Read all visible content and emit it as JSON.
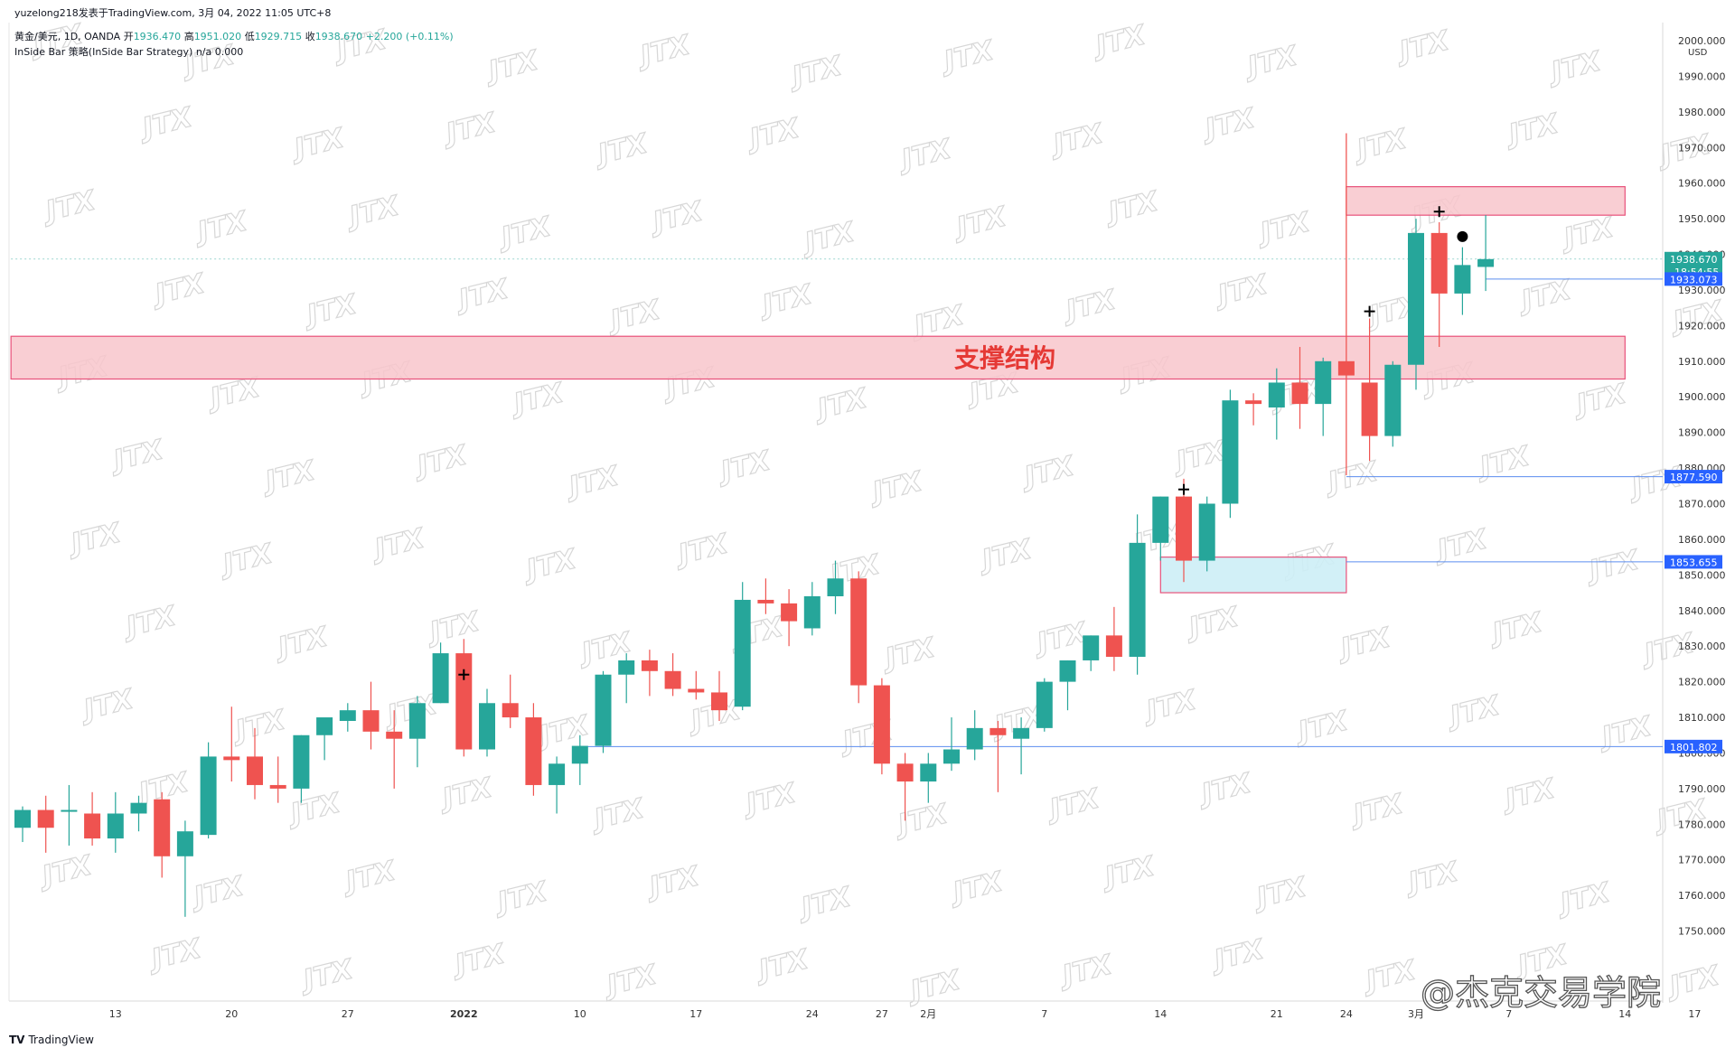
{
  "header": {
    "line1": "yuzelong218发表于TradingView.com, 3月 04, 2022 11:05 UTC+8",
    "symbol": "黄金/美元, 1D, OANDA",
    "open_label": "开",
    "open": "1936.470",
    "high_label": "高",
    "high": "1951.020",
    "low_label": "低",
    "low": "1929.715",
    "close_label": "收",
    "close": "1938.670",
    "change": "+2.200 (+0.11%)",
    "indicator": "InSide Bar 策略(InSide Bar Strategy)  n/a  0.000"
  },
  "footer": {
    "logo": "TradingView",
    "credit": "@杰克交易学院"
  },
  "price_axis": {
    "currency": "USD"
  },
  "price_tags": [
    {
      "price": 1938.67,
      "label": "1938.670",
      "sub": "18:54:55",
      "color": "#26a69a"
    },
    {
      "price": 1933.073,
      "label": "1933.073",
      "color": "#2962ff"
    },
    {
      "price": 1877.59,
      "label": "1877.590",
      "color": "#2962ff"
    },
    {
      "price": 1853.655,
      "label": "1853.655",
      "color": "#2962ff"
    },
    {
      "price": 1801.802,
      "label": "1801.802",
      "color": "#2962ff"
    }
  ],
  "annotations": {
    "support_label": "支撑结构"
  },
  "colors": {
    "up": "#26a69a",
    "down": "#ef5350",
    "zone": "#f8c5cb",
    "zone_border": "#e8517a",
    "blue_zone": "#cdeef6",
    "line": "#5b8def",
    "watermark": "#d7d7d7"
  },
  "watermark_text": "JTX",
  "chart_data": {
    "type": "candlestick",
    "x_labels": [
      {
        "index": 4,
        "label": "13"
      },
      {
        "index": 9,
        "label": "20"
      },
      {
        "index": 14,
        "label": "27"
      },
      {
        "index": 19,
        "label": "2022"
      },
      {
        "index": 24,
        "label": "10"
      },
      {
        "index": 29,
        "label": "17"
      },
      {
        "index": 34,
        "label": "24"
      },
      {
        "index": 37,
        "label": "27"
      },
      {
        "index": 39,
        "label": "2月"
      },
      {
        "index": 44,
        "label": "7"
      },
      {
        "index": 49,
        "label": "14"
      },
      {
        "index": 54,
        "label": "21"
      },
      {
        "index": 57,
        "label": "24"
      },
      {
        "index": 60,
        "label": "3月"
      },
      {
        "index": 64,
        "label": "7"
      },
      {
        "index": 69,
        "label": "14"
      },
      {
        "index": 72,
        "label": "17"
      }
    ],
    "y_range": [
      1740,
      2000
    ],
    "y_ticks": [
      1750,
      1760,
      1770,
      1780,
      1790,
      1800,
      1810,
      1820,
      1830,
      1840,
      1850,
      1860,
      1870,
      1880,
      1890,
      1900,
      1910,
      1920,
      1930,
      1940,
      1950,
      1960,
      1970,
      1980,
      1990,
      2000
    ],
    "candles": [
      {
        "o": 1779,
        "h": 1785,
        "l": 1775,
        "c": 1784
      },
      {
        "o": 1784,
        "h": 1788,
        "l": 1772,
        "c": 1779
      },
      {
        "o": 1784,
        "h": 1791,
        "l": 1774,
        "c": 1784
      },
      {
        "o": 1783,
        "h": 1789,
        "l": 1774,
        "c": 1776
      },
      {
        "o": 1776,
        "h": 1789,
        "l": 1772,
        "c": 1783
      },
      {
        "o": 1783,
        "h": 1788,
        "l": 1778,
        "c": 1786
      },
      {
        "o": 1787,
        "h": 1789,
        "l": 1765,
        "c": 1771
      },
      {
        "o": 1771,
        "h": 1781,
        "l": 1754,
        "c": 1778
      },
      {
        "o": 1777,
        "h": 1803,
        "l": 1776,
        "c": 1799
      },
      {
        "o": 1799,
        "h": 1813,
        "l": 1792,
        "c": 1798
      },
      {
        "o": 1799,
        "h": 1807,
        "l": 1787,
        "c": 1791
      },
      {
        "o": 1791,
        "h": 1799,
        "l": 1786,
        "c": 1790
      },
      {
        "o": 1790,
        "h": 1805,
        "l": 1786,
        "c": 1805
      },
      {
        "o": 1805,
        "h": 1809,
        "l": 1798,
        "c": 1810
      },
      {
        "o": 1809,
        "h": 1814,
        "l": 1806,
        "c": 1812
      },
      {
        "o": 1812,
        "h": 1820,
        "l": 1801,
        "c": 1806
      },
      {
        "o": 1806,
        "h": 1812,
        "l": 1790,
        "c": 1804
      },
      {
        "o": 1804,
        "h": 1816,
        "l": 1796,
        "c": 1814
      },
      {
        "o": 1814,
        "h": 1831,
        "l": 1814,
        "c": 1828
      },
      {
        "o": 1828,
        "h": 1832,
        "l": 1799,
        "c": 1801
      },
      {
        "o": 1801,
        "h": 1818,
        "l": 1799,
        "c": 1814
      },
      {
        "o": 1814,
        "h": 1822,
        "l": 1807,
        "c": 1810
      },
      {
        "o": 1810,
        "h": 1814,
        "l": 1788,
        "c": 1791
      },
      {
        "o": 1791,
        "h": 1799,
        "l": 1783,
        "c": 1797
      },
      {
        "o": 1797,
        "h": 1805,
        "l": 1791,
        "c": 1802
      },
      {
        "o": 1802,
        "h": 1823,
        "l": 1800,
        "c": 1822
      },
      {
        "o": 1822,
        "h": 1828,
        "l": 1814,
        "c": 1826
      },
      {
        "o": 1826,
        "h": 1829,
        "l": 1816,
        "c": 1823
      },
      {
        "o": 1823,
        "h": 1828,
        "l": 1816,
        "c": 1818
      },
      {
        "o": 1818,
        "h": 1823,
        "l": 1815,
        "c": 1817
      },
      {
        "o": 1817,
        "h": 1823,
        "l": 1809,
        "c": 1812
      },
      {
        "o": 1813,
        "h": 1848,
        "l": 1812,
        "c": 1843
      },
      {
        "o": 1843,
        "h": 1849,
        "l": 1839,
        "c": 1842
      },
      {
        "o": 1842,
        "h": 1846,
        "l": 1830,
        "c": 1837
      },
      {
        "o": 1835,
        "h": 1848,
        "l": 1833,
        "c": 1844
      },
      {
        "o": 1844,
        "h": 1854,
        "l": 1839,
        "c": 1849
      },
      {
        "o": 1849,
        "h": 1851,
        "l": 1814,
        "c": 1819
      },
      {
        "o": 1819,
        "h": 1821,
        "l": 1794,
        "c": 1797
      },
      {
        "o": 1797,
        "h": 1800,
        "l": 1781,
        "c": 1792
      },
      {
        "o": 1792,
        "h": 1800,
        "l": 1786,
        "c": 1797
      },
      {
        "o": 1797,
        "h": 1810,
        "l": 1795,
        "c": 1801
      },
      {
        "o": 1801,
        "h": 1812,
        "l": 1798,
        "c": 1807
      },
      {
        "o": 1807,
        "h": 1809,
        "l": 1789,
        "c": 1805
      },
      {
        "o": 1804,
        "h": 1810,
        "l": 1794,
        "c": 1807
      },
      {
        "o": 1807,
        "h": 1821,
        "l": 1806,
        "c": 1820
      },
      {
        "o": 1820,
        "h": 1826,
        "l": 1812,
        "c": 1826
      },
      {
        "o": 1826,
        "h": 1833,
        "l": 1823,
        "c": 1833
      },
      {
        "o": 1833,
        "h": 1841,
        "l": 1823,
        "c": 1827
      },
      {
        "o": 1827,
        "h": 1867,
        "l": 1822,
        "c": 1859
      },
      {
        "o": 1859,
        "h": 1872,
        "l": 1854,
        "c": 1872
      },
      {
        "o": 1872,
        "h": 1877,
        "l": 1848,
        "c": 1854
      },
      {
        "o": 1854,
        "h": 1872,
        "l": 1851,
        "c": 1870
      },
      {
        "o": 1870,
        "h": 1902,
        "l": 1866,
        "c": 1899
      },
      {
        "o": 1899,
        "h": 1901,
        "l": 1892,
        "c": 1898
      },
      {
        "o": 1897,
        "h": 1908,
        "l": 1888,
        "c": 1904
      },
      {
        "o": 1904,
        "h": 1914,
        "l": 1891,
        "c": 1898
      },
      {
        "o": 1898,
        "h": 1911,
        "l": 1889,
        "c": 1910
      },
      {
        "o": 1910,
        "h": 1974,
        "l": 1878,
        "c": 1906
      },
      {
        "o": 1904,
        "h": 1922,
        "l": 1882,
        "c": 1889
      },
      {
        "o": 1889,
        "h": 1910,
        "l": 1886,
        "c": 1909
      },
      {
        "o": 1909,
        "h": 1950,
        "l": 1902,
        "c": 1946
      },
      {
        "o": 1946,
        "h": 1949,
        "l": 1914,
        "c": 1929
      },
      {
        "o": 1929,
        "h": 1942,
        "l": 1923,
        "c": 1937
      },
      {
        "o": 1936.47,
        "h": 1951.02,
        "l": 1929.715,
        "c": 1938.67
      }
    ],
    "zones": [
      {
        "name": "support",
        "x0": -0.5,
        "x1": 69,
        "y0": 1905,
        "y1": 1917
      },
      {
        "name": "resistance",
        "x0": 57,
        "x1": 69,
        "y0": 1951,
        "y1": 1959
      },
      {
        "name": "blue",
        "x0": 49,
        "x1": 57,
        "y0": 1845,
        "y1": 1855
      }
    ],
    "hlines": [
      {
        "price": 1933.073,
        "x0": 63,
        "x1": 73
      },
      {
        "price": 1877.59,
        "x0": 57,
        "x1": 73
      },
      {
        "price": 1853.655,
        "x0": 57,
        "x1": 73
      },
      {
        "price": 1801.802,
        "x0": 24,
        "x1": 73
      },
      {
        "price": 1938.67,
        "x0": -0.5,
        "x1": 73,
        "dotted": true
      }
    ],
    "vline": {
      "index": 57,
      "y0": 1878,
      "y1": 1974
    },
    "markers": [
      {
        "index": 19,
        "price": 1822,
        "type": "plus"
      },
      {
        "index": 50,
        "price": 1874,
        "type": "plus"
      },
      {
        "index": 58,
        "price": 1924,
        "type": "plus"
      },
      {
        "index": 61,
        "price": 1952,
        "type": "plus"
      },
      {
        "index": 62,
        "price": 1945,
        "type": "dot"
      }
    ]
  }
}
